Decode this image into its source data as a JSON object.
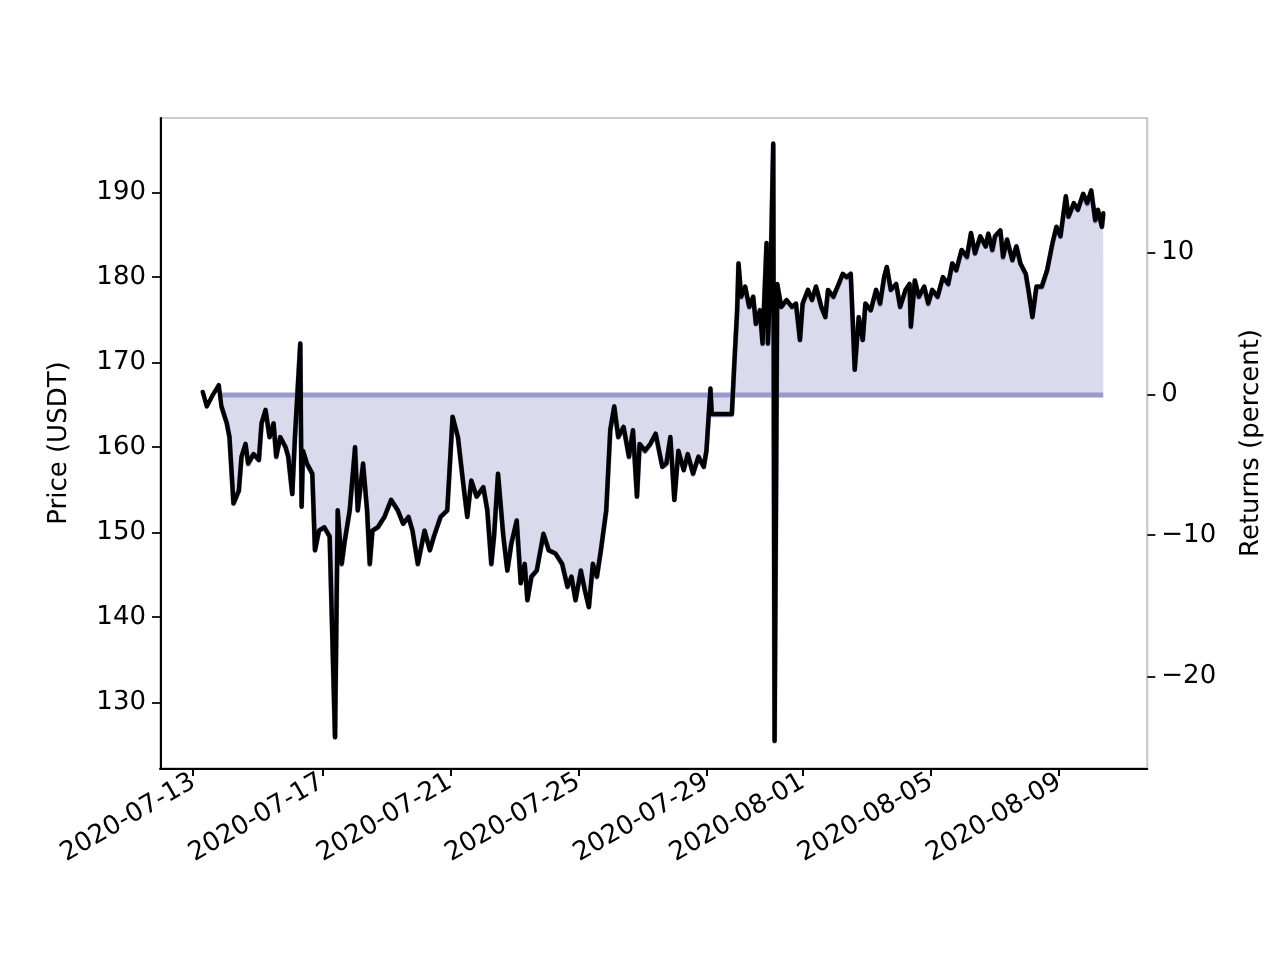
{
  "chart_data": {
    "type": "line",
    "ylabel": "Price (USDT)",
    "y2label": "Returns (percent)",
    "xlim": [
      "2020-07-11T23:00",
      "2020-08-11T18:00"
    ],
    "xticks": [
      "2020-07-13",
      "2020-07-17",
      "2020-07-21",
      "2020-07-25",
      "2020-07-29",
      "2020-08-01",
      "2020-08-05",
      "2020-08-09"
    ],
    "ylim": [
      122.3,
      198.7
    ],
    "yticks": [
      130,
      140,
      150,
      160,
      170,
      180,
      190
    ],
    "y2lim": [
      -26.5,
      19.5
    ],
    "y2ticks": [
      {
        "value": -20,
        "label": "−20"
      },
      {
        "value": -10,
        "label": "−10"
      },
      0,
      10
    ],
    "marker": "none",
    "ref_lines": [
      {
        "axis": "y2",
        "value": 0,
        "color": "#9999cc"
      }
    ],
    "x": [
      "2020-07-13T07:00",
      "2020-07-13T10:00",
      "2020-07-13T14:00",
      "2020-07-13T19:00",
      "2020-07-13T21:00",
      "2020-07-14T01:00",
      "2020-07-14T03:00",
      "2020-07-14T06:00",
      "2020-07-14T10:00",
      "2020-07-14T12:00",
      "2020-07-14T15:00",
      "2020-07-14T17:00",
      "2020-07-14T21:00",
      "2020-07-15T01:00",
      "2020-07-15T03:00",
      "2020-07-15T06:00",
      "2020-07-15T09:00",
      "2020-07-15T12:00",
      "2020-07-15T14:00",
      "2020-07-15T17:00",
      "2020-07-15T21:00",
      "2020-07-15T23:00",
      "2020-07-16T02:00",
      "2020-07-16T04:00",
      "2020-07-16T08:00",
      "2020-07-16T09:00",
      "2020-07-16T10:00",
      "2020-07-16T13:00",
      "2020-07-16T17:00",
      "2020-07-16T19:00",
      "2020-07-16T22:00",
      "2020-07-17T02:00",
      "2020-07-17T06:00",
      "2020-07-17T10:00",
      "2020-07-17T12:00",
      "2020-07-17T15:00",
      "2020-07-17T17:00",
      "2020-07-17T21:00",
      "2020-07-18T01:00",
      "2020-07-18T03:00",
      "2020-07-18T07:00",
      "2020-07-18T10:00",
      "2020-07-18T12:00",
      "2020-07-18T14:00",
      "2020-07-18T18:00",
      "2020-07-18T23:00",
      "2020-07-19T04:00",
      "2020-07-19T09:00",
      "2020-07-19T13:00",
      "2020-07-19T17:00",
      "2020-07-19T20:00",
      "2020-07-20T00:00",
      "2020-07-20T05:00",
      "2020-07-20T09:00",
      "2020-07-20T12:00",
      "2020-07-20T17:00",
      "2020-07-20T22:00",
      "2020-07-21T02:00",
      "2020-07-21T06:00",
      "2020-07-21T10:00",
      "2020-07-21T13:00",
      "2020-07-21T16:00",
      "2020-07-21T20:00",
      "2020-07-22T01:00",
      "2020-07-22T04:00",
      "2020-07-22T07:00",
      "2020-07-22T09:00",
      "2020-07-22T12:00",
      "2020-07-22T16:00",
      "2020-07-22T19:00",
      "2020-07-22T22:00",
      "2020-07-23T02:00",
      "2020-07-23T05:00",
      "2020-07-23T08:00",
      "2020-07-23T10:00",
      "2020-07-23T13:00",
      "2020-07-23T17:00",
      "2020-07-23T22:00",
      "2020-07-24T02:00",
      "2020-07-24T07:00",
      "2020-07-24T12:00",
      "2020-07-24T16:00",
      "2020-07-24T19:00",
      "2020-07-24T22:00",
      "2020-07-25T02:00",
      "2020-07-25T05:00",
      "2020-07-25T08:00",
      "2020-07-25T11:00",
      "2020-07-25T14:00",
      "2020-07-25T17:00",
      "2020-07-25T21:00",
      "2020-07-26T00:00",
      "2020-07-26T03:00",
      "2020-07-26T06:00",
      "2020-07-26T10:00",
      "2020-07-26T14:00",
      "2020-07-26T17:00",
      "2020-07-26T20:00",
      "2020-07-26T22:00",
      "2020-07-27T02:00",
      "2020-07-27T06:00",
      "2020-07-27T10:00",
      "2020-07-27T15:00",
      "2020-07-27T18:00",
      "2020-07-27T21:00",
      "2020-07-28T00:00",
      "2020-07-28T03:00",
      "2020-07-28T07:00",
      "2020-07-28T10:00",
      "2020-07-28T14:00",
      "2020-07-28T18:00",
      "2020-07-28T22:00",
      "2020-07-29T00:00",
      "2020-07-29T03:00",
      "2020-07-29T04:00",
      "2020-07-29T19:00",
      "2020-07-29T21:00",
      "2020-07-29T23:00",
      "2020-07-30T00:00",
      "2020-07-30T02:00",
      "2020-07-30T05:00",
      "2020-07-30T08:00",
      "2020-07-30T11:00",
      "2020-07-30T13:00",
      "2020-07-30T16:00",
      "2020-07-30T18:00",
      "2020-07-30T21:00",
      "2020-07-30T22:00",
      "2020-07-31T00:00",
      "2020-07-31T02:00",
      "2020-07-31T03:00",
      "2020-07-31T05:00",
      "2020-07-31T08:00",
      "2020-07-31T12:00",
      "2020-07-31T16:00",
      "2020-07-31T19:00",
      "2020-07-31T22:00",
      "2020-08-01T00:00",
      "2020-08-01T04:00",
      "2020-08-01T07:00",
      "2020-08-01T10:00",
      "2020-08-01T14:00",
      "2020-08-01T17:00",
      "2020-08-01T19:00",
      "2020-08-01T23:00",
      "2020-08-02T03:00",
      "2020-08-02T06:00",
      "2020-08-02T09:00",
      "2020-08-02T12:00",
      "2020-08-02T15:00",
      "2020-08-02T18:00",
      "2020-08-02T21:00",
      "2020-08-02T23:00",
      "2020-08-03T03:00",
      "2020-08-03T07:00",
      "2020-08-03T10:00",
      "2020-08-03T13:00",
      "2020-08-03T15:00",
      "2020-08-03T18:00",
      "2020-08-03T22:00",
      "2020-08-04T01:00",
      "2020-08-04T05:00",
      "2020-08-04T08:00",
      "2020-08-04T09:00",
      "2020-08-04T12:00",
      "2020-08-04T15:00",
      "2020-08-04T19:00",
      "2020-08-04T22:00",
      "2020-08-05T01:00",
      "2020-08-05T05:00",
      "2020-08-05T09:00",
      "2020-08-05T13:00",
      "2020-08-05T16:00",
      "2020-08-05T19:00",
      "2020-08-05T23:00",
      "2020-08-06T03:00",
      "2020-08-06T06:00",
      "2020-08-06T09:00",
      "2020-08-06T13:00",
      "2020-08-06T17:00",
      "2020-08-06T19:00",
      "2020-08-06T22:00",
      "2020-08-07T00:00",
      "2020-08-07T04:00",
      "2020-08-07T06:00",
      "2020-08-07T09:00",
      "2020-08-07T13:00",
      "2020-08-07T16:00",
      "2020-08-07T19:00",
      "2020-08-07T23:00",
      "2020-08-08T01:00",
      "2020-08-08T04:00",
      "2020-08-08T07:00",
      "2020-08-08T11:00",
      "2020-08-08T15:00",
      "2020-08-08T19:00",
      "2020-08-08T22:00",
      "2020-08-09T01:00",
      "2020-08-09T05:00",
      "2020-08-09T07:00",
      "2020-08-09T11:00",
      "2020-08-09T14:00",
      "2020-08-09T18:00",
      "2020-08-09T21:00",
      "2020-08-10T00:00",
      "2020-08-10T03:00",
      "2020-08-10T05:00",
      "2020-08-10T08:00",
      "2020-08-10T09:00"
    ],
    "series": [
      {
        "color": "#000000",
        "values": [
          166.5,
          164.8,
          166.0,
          167.3,
          164.8,
          162.8,
          161.2,
          153.4,
          154.9,
          158.9,
          160.4,
          158.1,
          159.2,
          158.5,
          162.8,
          164.4,
          161.2,
          162.8,
          158.9,
          161.2,
          160.0,
          158.9,
          154.5,
          161.2,
          172.2,
          153.0,
          159.6,
          158.1,
          156.9,
          147.9,
          150.2,
          150.6,
          149.5,
          125.9,
          152.6,
          146.3,
          148.7,
          152.6,
          160.0,
          152.6,
          158.1,
          152.6,
          146.3,
          150.2,
          150.6,
          151.8,
          153.8,
          152.6,
          151.0,
          151.8,
          150.2,
          146.3,
          150.2,
          147.9,
          149.5,
          151.8,
          152.6,
          163.6,
          161.2,
          155.7,
          151.8,
          156.1,
          154.2,
          155.3,
          152.6,
          146.3,
          149.5,
          156.9,
          149.5,
          145.5,
          148.7,
          151.4,
          144.0,
          146.3,
          142.0,
          144.8,
          145.5,
          149.8,
          147.9,
          147.5,
          146.3,
          143.6,
          144.8,
          142.0,
          145.5,
          143.2,
          141.2,
          146.3,
          144.8,
          147.9,
          152.6,
          162.0,
          164.8,
          161.2,
          162.4,
          158.9,
          162.0,
          154.2,
          160.4,
          159.6,
          160.4,
          161.6,
          157.7,
          158.1,
          161.2,
          153.8,
          159.6,
          157.3,
          159.2,
          156.9,
          158.9,
          157.7,
          159.6,
          166.9,
          163.9,
          163.9,
          170.2,
          176.1,
          181.6,
          177.7,
          178.9,
          176.5,
          177.7,
          174.5,
          176.1,
          172.2,
          184.0,
          172.2,
          180.0,
          195.7,
          125.5,
          179.2,
          176.5,
          177.3,
          176.5,
          176.9,
          172.6,
          176.9,
          178.5,
          177.3,
          178.9,
          176.5,
          175.3,
          178.5,
          177.7,
          179.2,
          180.4,
          180.0,
          180.4,
          169.1,
          175.3,
          172.6,
          176.9,
          176.1,
          178.5,
          176.9,
          180.0,
          181.2,
          178.5,
          179.2,
          176.5,
          178.5,
          179.2,
          174.2,
          179.6,
          177.7,
          178.9,
          176.9,
          178.5,
          177.7,
          180.0,
          179.2,
          181.6,
          180.8,
          183.2,
          182.4,
          185.2,
          182.8,
          184.8,
          183.6,
          185.1,
          183.2,
          184.8,
          185.5,
          182.4,
          184.4,
          182.0,
          183.6,
          181.6,
          180.4,
          178.5,
          175.3,
          178.9,
          178.9,
          180.8,
          184.0,
          185.9,
          184.8,
          189.5,
          187.1,
          188.7,
          187.9,
          189.8,
          188.7,
          190.2,
          186.7,
          187.9,
          185.9,
          187.5
        ]
      },
      {
        "type": "area",
        "axis": "y2",
        "color": "#9999cc",
        "values": [
          null,
          null,
          null,
          null,
          -0.9,
          -2.1,
          -3.1,
          -7.8,
          -6.9,
          -4.5,
          -3.6,
          -5.0,
          -4.3,
          -4.7,
          -2.1,
          -1.2,
          -3.1,
          -2.1,
          -4.5,
          -3.1,
          -3.8,
          -4.5,
          -7.1,
          -3.1,
          3.5,
          -8.0,
          -4.1,
          -5.0,
          -5.7,
          -11.1,
          -9.7,
          -9.5,
          -10.1,
          -24.3,
          -8.3,
          -12.1,
          -10.6,
          -8.3,
          -3.8,
          -8.3,
          -5.0,
          -8.3,
          -12.1,
          -9.7,
          -9.5,
          -8.7,
          -7.5,
          -8.3,
          -9.2,
          -8.7,
          -9.7,
          -12.1,
          -9.7,
          -11.1,
          -10.1,
          -8.7,
          -8.3,
          -1.7,
          -3.1,
          -6.4,
          -8.7,
          -6.2,
          -7.3,
          -6.6,
          -8.3,
          -12.1,
          -10.1,
          -5.7,
          -10.1,
          -12.5,
          -10.6,
          -9.0,
          -13.4,
          -12.1,
          -14.6,
          -13.0,
          -12.5,
          -9.9,
          -11.1,
          -11.3,
          -12.1,
          -13.7,
          -13.0,
          -14.6,
          -12.5,
          -13.9,
          -15.1,
          -12.1,
          -13.0,
          -11.1,
          -8.3,
          -2.6,
          -0.9,
          -3.1,
          -2.4,
          -4.5,
          -2.6,
          -7.3,
          -3.6,
          -4.1,
          -3.6,
          -2.9,
          -5.2,
          -5.0,
          -3.1,
          -7.5,
          -4.1,
          -5.4,
          -4.3,
          -5.7,
          -4.5,
          -5.2,
          -4.1,
          0.3,
          -1.5,
          -1.5,
          2.3,
          5.9,
          9.2,
          6.8,
          7.5,
          6.1,
          6.8,
          4.9,
          5.9,
          3.5,
          10.6,
          3.5,
          8.2,
          17.6,
          -24.6,
          7.7,
          6.1,
          6.6,
          6.1,
          6.3,
          3.8,
          6.3,
          7.3,
          6.6,
          7.5,
          6.1,
          5.4,
          7.3,
          6.8,
          7.7,
          8.4,
          8.2,
          8.4,
          1.7,
          5.4,
          3.8,
          6.3,
          5.9,
          7.3,
          6.3,
          8.2,
          8.9,
          7.3,
          7.7,
          6.1,
          7.3,
          7.7,
          4.7,
          8.0,
          6.8,
          7.5,
          6.3,
          7.3,
          6.8,
          8.2,
          7.7,
          9.2,
          8.7,
          10.1,
          9.6,
          11.3,
          9.9,
          11.1,
          10.4,
          11.3,
          10.1,
          11.1,
          11.5,
          9.6,
          10.9,
          9.4,
          10.4,
          9.2,
          8.4,
          7.3,
          5.4,
          7.5,
          7.5,
          8.7,
          10.6,
          11.8,
          11.1,
          13.9,
          12.5,
          13.4,
          13.0,
          14.1,
          13.4,
          14.3,
          12.2,
          13.0,
          11.8,
          12.7
        ]
      }
    ]
  }
}
